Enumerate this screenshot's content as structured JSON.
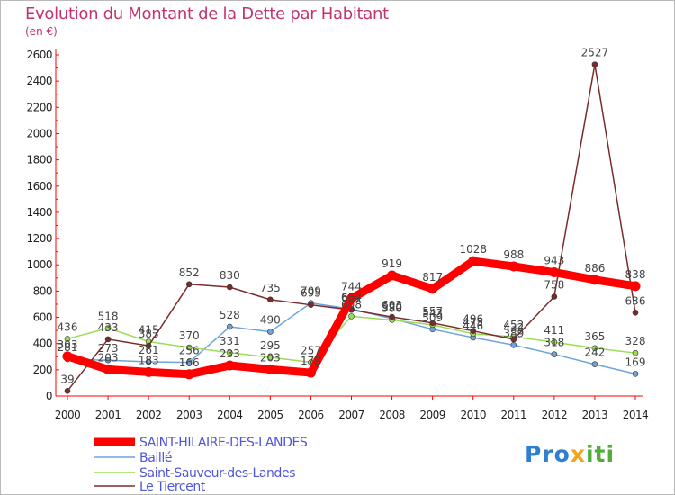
{
  "header": {
    "title": "Evolution du Montant de la Dette par Habitant",
    "unit": "(en €)"
  },
  "brand": {
    "logo_text": "Proxiti"
  },
  "chart_data": {
    "type": "line",
    "title": "Evolution du Montant de la Dette par Habitant",
    "ylabel": "(en €)",
    "xlabel": "",
    "x": [
      2000,
      2001,
      2002,
      2003,
      2004,
      2005,
      2006,
      2007,
      2008,
      2009,
      2010,
      2011,
      2012,
      2013,
      2014
    ],
    "ylim": [
      0,
      2600
    ],
    "yticks": [
      0,
      200,
      400,
      600,
      800,
      1000,
      1200,
      1400,
      1600,
      1800,
      2000,
      2200,
      2400,
      2600
    ],
    "grid": false,
    "legend_position": "bottom-left",
    "series": [
      {
        "name": "SAINT-HILAIRE-DES-LANDES",
        "color": "#ff0000",
        "width": 9,
        "values": [
          303,
          203,
          183,
          166,
          233,
          203,
          178,
          744,
          919,
          817,
          1028,
          988,
          943,
          886,
          838
        ]
      },
      {
        "name": "Baillé",
        "color": "#6fa4d9",
        "width": 1.5,
        "values": [
          281,
          273,
          261,
          256,
          528,
          490,
          709,
          664,
          590,
          509,
          446,
          389,
          318,
          242,
          169
        ]
      },
      {
        "name": "Saint-Sauveur-des-Landes",
        "color": "#99dd55",
        "width": 1.5,
        "values": [
          436,
          518,
          415,
          370,
          331,
          295,
          257,
          608,
          580,
          543,
          475,
          452,
          411,
          365,
          328
        ]
      },
      {
        "name": "Le Tiercent",
        "color": "#7a2c2c",
        "width": 1.5,
        "values": [
          39,
          433,
          383,
          852,
          830,
          735,
          695,
          657,
          603,
          557,
          496,
          432,
          758,
          2527,
          636
        ]
      }
    ]
  }
}
